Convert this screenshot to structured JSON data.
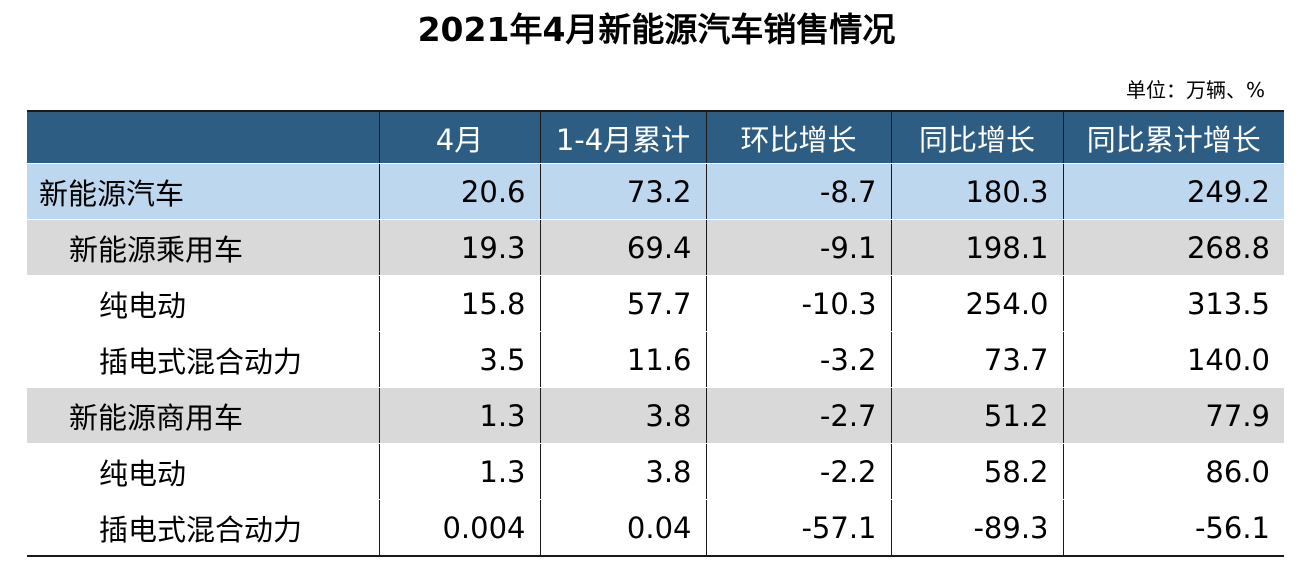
{
  "title": "2021年4月新能源汽车销售情况",
  "unit": "单位：万辆、%",
  "colors": {
    "header_bg": "#2e5d84",
    "total_row_bg": "#bdd7ee",
    "subtotal_row_bg": "#d9d9d9"
  },
  "chart_data": {
    "type": "table",
    "title": "2021年4月新能源汽车销售情况",
    "unit": "单位：万辆、%",
    "columns": [
      "",
      "4月",
      "1-4月累计",
      "环比增长",
      "同比增长",
      "同比累计增长"
    ],
    "rows": [
      {
        "level": 0,
        "label": "新能源汽车",
        "values": [
          "20.6",
          "73.2",
          "-8.7",
          "180.3",
          "249.2"
        ]
      },
      {
        "level": 1,
        "label": "新能源乘用车",
        "values": [
          "19.3",
          "69.4",
          "-9.1",
          "198.1",
          "268.8"
        ]
      },
      {
        "level": 2,
        "label": "纯电动",
        "values": [
          "15.8",
          "57.7",
          "-10.3",
          "254.0",
          "313.5"
        ]
      },
      {
        "level": 2,
        "label": "插电式混合动力",
        "values": [
          "3.5",
          "11.6",
          "-3.2",
          "73.7",
          "140.0"
        ]
      },
      {
        "level": 1,
        "label": "新能源商用车",
        "values": [
          "1.3",
          "3.8",
          "-2.7",
          "51.2",
          "77.9"
        ]
      },
      {
        "level": 2,
        "label": "纯电动",
        "values": [
          "1.3",
          "3.8",
          "-2.2",
          "58.2",
          "86.0"
        ]
      },
      {
        "level": 2,
        "label": "插电式混合动力",
        "values": [
          "0.004",
          "0.04",
          "-57.1",
          "-89.3",
          "-56.1"
        ]
      }
    ]
  }
}
